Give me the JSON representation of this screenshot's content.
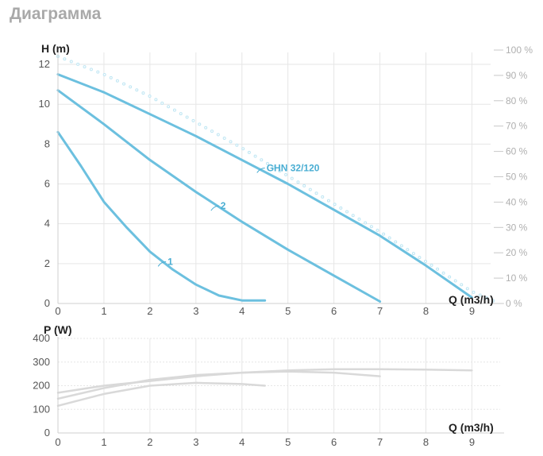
{
  "page": {
    "title": "Диаграмма"
  },
  "colors": {
    "head_curve": "#6cc0df",
    "efficiency": "#bfe6f3",
    "power_curve": "#d9d9d9",
    "grid": "#e6e6e6",
    "label": "#4aaed3"
  },
  "chart_data": [
    {
      "type": "line",
      "name": "head",
      "ylabel": "H (m)",
      "xlabel": "Q (m3/h)",
      "xlim": [
        0,
        9.7
      ],
      "ylim": [
        0,
        12.6
      ],
      "x_ticks": [
        "0",
        "1",
        "2",
        "3",
        "4",
        "5",
        "6",
        "7",
        "8",
        "9"
      ],
      "y_ticks": [
        "0",
        "2",
        "4",
        "6",
        "8",
        "10",
        "12"
      ],
      "y2_ticks": [
        "0 %",
        "10 %",
        "20 %",
        "30 %",
        "40 %",
        "50 %",
        "60 %",
        "70 %",
        "80 %",
        "90 %",
        "100 %"
      ],
      "y2lim": [
        0,
        100
      ],
      "grid": true,
      "series": [
        {
          "name": "1",
          "label": "1",
          "label_at": [
            2.35,
            2.1
          ],
          "x": [
            0,
            0.5,
            1,
            1.5,
            2,
            2.5,
            3,
            3.5,
            4,
            4.5
          ],
          "y": [
            8.6,
            6.9,
            5.1,
            3.8,
            2.6,
            1.7,
            0.95,
            0.4,
            0.15,
            0.15
          ]
        },
        {
          "name": "2",
          "label": "2",
          "label_at": [
            3.5,
            4.9
          ],
          "x": [
            0,
            1,
            2,
            3,
            4,
            5,
            6,
            7
          ],
          "y": [
            10.7,
            9.0,
            7.2,
            5.6,
            4.1,
            2.7,
            1.4,
            0.1
          ]
        },
        {
          "name": "GHN 32/120",
          "label": "GHN 32/120",
          "label_at": [
            4.5,
            6.8
          ],
          "x": [
            0,
            1,
            2,
            3,
            4,
            5,
            6,
            7,
            8,
            9
          ],
          "y": [
            11.5,
            10.6,
            9.5,
            8.4,
            7.2,
            6.0,
            4.7,
            3.4,
            1.9,
            0.3
          ]
        }
      ],
      "efficiency": {
        "x": [
          0,
          1,
          2,
          3,
          4,
          5,
          6,
          7,
          8,
          9,
          9.6
        ],
        "y": [
          12.4,
          11.5,
          10.4,
          9.1,
          7.8,
          6.4,
          5.0,
          3.6,
          2.1,
          0.6,
          0.0
        ]
      }
    },
    {
      "type": "line",
      "name": "power",
      "ylabel": "P (W)",
      "xlabel": "Q (m3/h)",
      "xlim": [
        0,
        9.7
      ],
      "ylim": [
        0,
        400
      ],
      "x_ticks": [
        "0",
        "1",
        "2",
        "3",
        "4",
        "5",
        "6",
        "7",
        "8",
        "9"
      ],
      "y_ticks": [
        "0",
        "100",
        "200",
        "300",
        "400"
      ],
      "grid": true,
      "series": [
        {
          "x": [
            0,
            1,
            2,
            3,
            4,
            4.5
          ],
          "y": [
            115,
            165,
            200,
            212,
            207,
            200
          ]
        },
        {
          "x": [
            0,
            1,
            2,
            3,
            4,
            5,
            6,
            7
          ],
          "y": [
            145,
            190,
            225,
            245,
            255,
            260,
            255,
            240
          ]
        },
        {
          "x": [
            0,
            1,
            2,
            3,
            4,
            5,
            6,
            7,
            8,
            9
          ],
          "y": [
            170,
            200,
            220,
            240,
            255,
            265,
            270,
            270,
            268,
            265
          ]
        }
      ]
    }
  ]
}
